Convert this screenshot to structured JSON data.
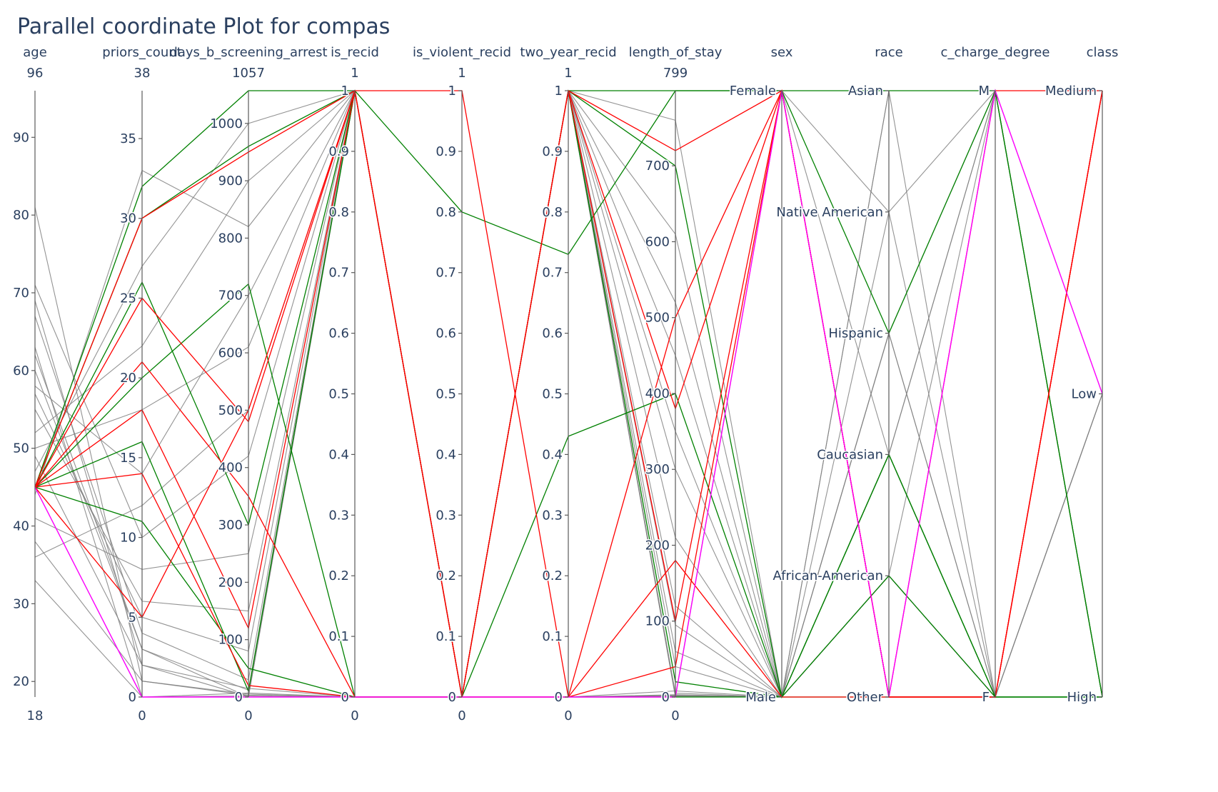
{
  "chart_data": {
    "type": "parallel_coordinates",
    "title": "Parallel coordinate Plot for compas",
    "axes": [
      {
        "name": "age",
        "type": "numeric",
        "range": [
          18,
          96
        ],
        "range_labels": [
          "96",
          "18"
        ],
        "ticks": [
          20,
          30,
          40,
          50,
          60,
          70,
          80,
          90
        ]
      },
      {
        "name": "priors_count",
        "type": "numeric",
        "range": [
          0,
          38
        ],
        "range_labels": [
          "38",
          "0"
        ],
        "ticks": [
          0,
          5,
          10,
          15,
          20,
          25,
          30,
          35
        ]
      },
      {
        "name": "days_b_screening_arrest",
        "type": "numeric",
        "range": [
          0,
          1057
        ],
        "range_labels": [
          "1057",
          "0"
        ],
        "ticks": [
          0,
          100,
          200,
          300,
          400,
          500,
          600,
          700,
          800,
          900,
          1000
        ]
      },
      {
        "name": "is_recid",
        "type": "numeric",
        "range": [
          0,
          1
        ],
        "range_labels": [
          "1",
          "0"
        ],
        "ticks": [
          0,
          0.1,
          0.2,
          0.3,
          0.4,
          0.5,
          0.6,
          0.7,
          0.8,
          0.9,
          1
        ]
      },
      {
        "name": "is_violent_recid",
        "type": "numeric",
        "range": [
          0,
          1
        ],
        "range_labels": [
          "1",
          "0"
        ],
        "ticks": [
          0,
          0.1,
          0.2,
          0.3,
          0.4,
          0.5,
          0.6,
          0.7,
          0.8,
          0.9,
          1
        ]
      },
      {
        "name": "two_year_recid",
        "type": "numeric",
        "range": [
          0,
          1
        ],
        "range_labels": [
          "1",
          "0"
        ],
        "ticks": [
          0,
          0.1,
          0.2,
          0.3,
          0.4,
          0.5,
          0.6,
          0.7,
          0.8,
          0.9,
          1
        ]
      },
      {
        "name": "length_of_stay",
        "type": "numeric",
        "range": [
          0,
          799
        ],
        "range_labels": [
          "799",
          "0"
        ],
        "ticks": [
          0,
          100,
          200,
          300,
          400,
          500,
          600,
          700
        ]
      },
      {
        "name": "sex",
        "type": "categorical",
        "categories": [
          "Male",
          "Female"
        ]
      },
      {
        "name": "race",
        "type": "categorical",
        "categories": [
          "Other",
          "African-American",
          "Caucasian",
          "Hispanic",
          "Native American",
          "Asian"
        ]
      },
      {
        "name": "c_charge_degree",
        "type": "categorical",
        "categories": [
          "F",
          "M"
        ]
      },
      {
        "name": "class",
        "type": "categorical",
        "categories": [
          "High",
          "Low",
          "Medium"
        ]
      }
    ],
    "series": [
      {
        "color": "#808080",
        "records": [
          [
            62,
            3,
            12,
            1,
            0,
            1,
            5,
            "Male",
            "African-American",
            "F",
            "High"
          ],
          [
            45,
            0,
            0,
            0,
            0,
            0,
            1,
            "Male",
            "Caucasian",
            "M",
            "High"
          ],
          [
            55,
            6,
            150,
            1,
            0,
            1,
            60,
            "Male",
            "Hispanic",
            "F",
            "Low"
          ],
          [
            38,
            1,
            3,
            0,
            0,
            0,
            2,
            "Male",
            "Other",
            "F",
            "High"
          ],
          [
            71,
            10,
            420,
            1,
            0,
            1,
            210,
            "Male",
            "African-American",
            "M",
            "Medium"
          ],
          [
            49,
            2,
            1,
            1,
            0,
            1,
            0,
            "Female",
            "Caucasian",
            "F",
            "High"
          ],
          [
            58,
            14,
            700,
            1,
            0,
            1,
            350,
            "Male",
            "Native American",
            "F",
            "Low"
          ],
          [
            33,
            0,
            2,
            0,
            0,
            0,
            0,
            "Male",
            "Asian",
            "M",
            "High"
          ],
          [
            67,
            4,
            30,
            1,
            0,
            1,
            120,
            "Male",
            "Hispanic",
            "M",
            "High"
          ],
          [
            52,
            22,
            900,
            1,
            0,
            1,
            610,
            "Male",
            "African-American",
            "F",
            "Low"
          ],
          [
            81,
            1,
            5,
            0,
            0,
            0,
            3,
            "Male",
            "Caucasian",
            "F",
            "High"
          ],
          [
            41,
            8,
            250,
            1,
            0,
            1,
            95,
            "Male",
            "Other",
            "F",
            "High"
          ],
          [
            60,
            3,
            0,
            1,
            0,
            1,
            1,
            "Female",
            "Native American",
            "M",
            "High"
          ],
          [
            47,
            27,
            1000,
            1,
            0,
            1,
            760,
            "Male",
            "African-American",
            "F",
            "Low"
          ],
          [
            63,
            0,
            7,
            0,
            0,
            0,
            2,
            "Male",
            "Caucasian",
            "M",
            "High"
          ],
          [
            36,
            12,
            500,
            1,
            0,
            1,
            300,
            "Male",
            "Hispanic",
            "F",
            "High"
          ],
          [
            57,
            5,
            80,
            1,
            0,
            1,
            40,
            "Male",
            "Asian",
            "F",
            "High"
          ],
          [
            44,
            33,
            820,
            1,
            0,
            1,
            450,
            "Male",
            "African-American",
            "F",
            "High"
          ],
          [
            69,
            2,
            15,
            0,
            0,
            0,
            8,
            "Male",
            "Other",
            "M",
            "Low"
          ],
          [
            50,
            18,
            610,
            1,
            0,
            1,
            520,
            "Male",
            "Caucasian",
            "F",
            "High"
          ]
        ]
      },
      {
        "color": "#008000",
        "records": [
          [
            45,
            32,
            1057,
            1,
            0,
            1,
            799,
            "Female",
            "Asian",
            "M",
            "High"
          ],
          [
            45,
            30,
            960,
            1,
            0,
            1,
            700,
            "Male",
            "Caucasian",
            "F",
            "High"
          ],
          [
            45,
            20,
            720,
            0,
            0,
            0,
            0,
            "Male",
            "African-American",
            "F",
            "High"
          ],
          [
            45,
            26,
            300,
            1,
            0.8,
            0.73,
            799,
            "Female",
            "Hispanic",
            "M",
            "High"
          ],
          [
            45,
            16,
            10,
            1,
            0,
            1,
            20,
            "Male",
            "Caucasian",
            "F",
            "High"
          ],
          [
            45,
            11,
            50,
            0,
            0,
            0.43,
            400,
            "Male",
            "Other",
            "F",
            "High"
          ]
        ]
      },
      {
        "color": "#ff0000",
        "records": [
          [
            45,
            30,
            950,
            1,
            0,
            1,
            720,
            "Female",
            "Other",
            "F",
            "Medium"
          ],
          [
            45,
            25,
            480,
            1,
            1,
            0,
            500,
            "Female",
            "Other",
            "F",
            "Medium"
          ],
          [
            45,
            21,
            350,
            0,
            0,
            0,
            180,
            "Male",
            "Other",
            "M",
            "Medium"
          ],
          [
            45,
            18,
            120,
            1,
            0,
            1,
            100,
            "Female",
            "Other",
            "F",
            "Medium"
          ],
          [
            45,
            14,
            20,
            0,
            0,
            0,
            40,
            "Female",
            "Other",
            "F",
            "Medium"
          ],
          [
            45,
            5,
            500,
            1,
            0,
            1,
            380,
            "Female",
            "Other",
            "F",
            "Medium"
          ]
        ]
      },
      {
        "color": "#ff00ff",
        "records": [
          [
            45,
            0,
            0,
            0,
            0,
            0,
            0,
            "Female",
            "Other",
            "M",
            "Low"
          ]
        ]
      }
    ]
  }
}
